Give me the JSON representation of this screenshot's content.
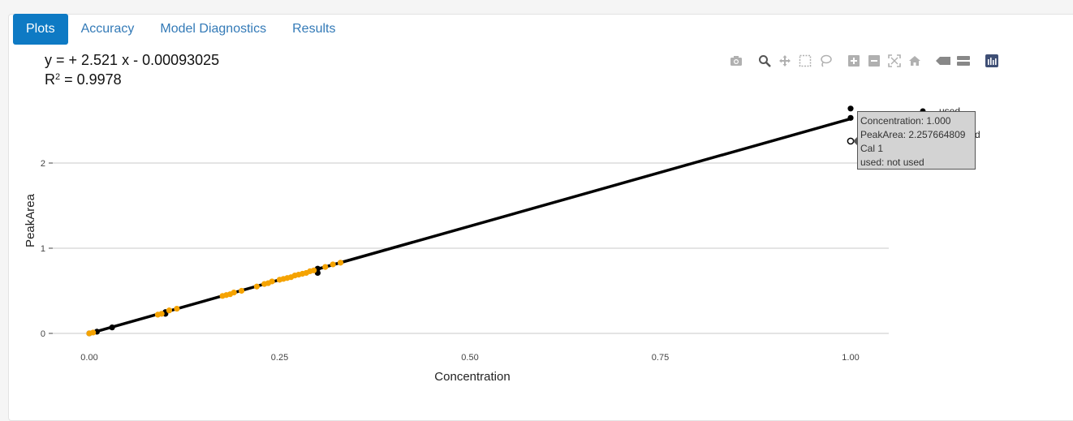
{
  "tabs": [
    {
      "label": "Plots",
      "active": true
    },
    {
      "label": "Accuracy",
      "active": false
    },
    {
      "label": "Model Diagnostics",
      "active": false
    },
    {
      "label": "Results",
      "active": false
    }
  ],
  "equation": {
    "line1": "y =  + 2.521 x - 0.00093025",
    "r2_prefix": "R",
    "r2_sup": "2",
    "r2_value": " = 0.9978"
  },
  "modebar_icons": [
    "camera-icon",
    "zoom-icon",
    "pan-icon",
    "box-select-icon",
    "lasso-icon",
    "zoom-in-icon",
    "zoom-out-icon",
    "autoscale-icon",
    "home-icon",
    "spike-lines-icon",
    "compare-hover-icon",
    "plotly-logo-icon"
  ],
  "colors": {
    "used": "#000000",
    "orange": "#f5a300",
    "line": "#000000",
    "tab_active": "#0e7ac4"
  },
  "legend": {
    "used_label": "used",
    "not_used_label_tail": "d"
  },
  "tooltip": {
    "line1": "Concentration: 1.000",
    "line2": "PeakArea: 2.257664809",
    "line3": "Cal 1",
    "line4": "used: not used"
  },
  "chart_data": {
    "type": "scatter",
    "xlabel": "Concentration",
    "ylabel": "PeakArea",
    "xlim": [
      -0.05,
      1.05
    ],
    "ylim": [
      -0.1,
      2.6
    ],
    "xticks": [
      "0.00",
      "0.25",
      "0.50",
      "0.75",
      "1.00"
    ],
    "xtick_values": [
      0,
      0.25,
      0.5,
      0.75,
      1.0
    ],
    "yticks": [
      "0",
      "1",
      "2"
    ],
    "ytick_values": [
      0,
      1,
      2
    ],
    "fit_line": {
      "slope": 2.521,
      "intercept": -0.00093025,
      "x": [
        0,
        1.0
      ]
    },
    "series": [
      {
        "name": "used",
        "color": "#000000",
        "x": [
          0.0,
          0.01,
          0.03,
          0.1,
          0.1,
          0.3,
          0.3,
          1.0,
          1.0
        ],
        "y": [
          0.0,
          0.02,
          0.07,
          0.25,
          0.23,
          0.76,
          0.71,
          2.64,
          2.53
        ]
      },
      {
        "name": "",
        "color": "#f5a300",
        "x": [
          0.0,
          0.005,
          0.09,
          0.095,
          0.105,
          0.115,
          0.175,
          0.18,
          0.185,
          0.19,
          0.2,
          0.22,
          0.23,
          0.235,
          0.24,
          0.25,
          0.255,
          0.26,
          0.265,
          0.27,
          0.275,
          0.28,
          0.285,
          0.29,
          0.295,
          0.31,
          0.32,
          0.33
        ],
        "y": [
          0.0,
          0.01,
          0.22,
          0.23,
          0.27,
          0.29,
          0.44,
          0.45,
          0.46,
          0.48,
          0.5,
          0.55,
          0.58,
          0.59,
          0.61,
          0.63,
          0.64,
          0.65,
          0.66,
          0.68,
          0.69,
          0.7,
          0.71,
          0.73,
          0.74,
          0.78,
          0.81,
          0.83
        ]
      },
      {
        "name": "",
        "color": "#ffffff",
        "stroke": "#000000",
        "x": [
          1.0
        ],
        "y": [
          2.257664809
        ]
      }
    ]
  }
}
